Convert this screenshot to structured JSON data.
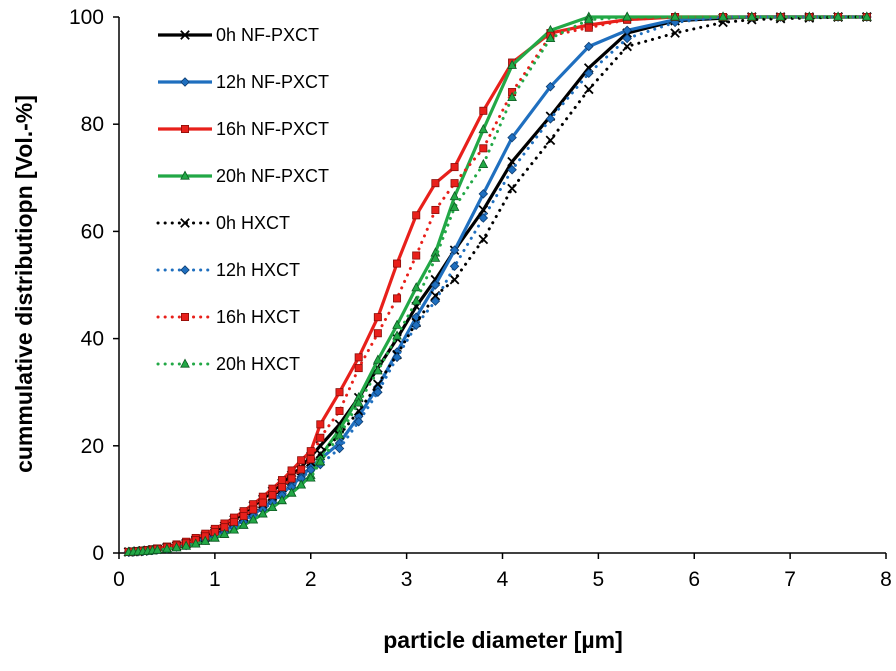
{
  "chart_data": {
    "type": "line",
    "xlabel": "particle diameter [µm]",
    "ylabel": "cummulative distributiopn [Vol.-%]",
    "xlim": [
      0,
      8
    ],
    "ylim": [
      0,
      100
    ],
    "x_ticks": [
      "0",
      "1",
      "2",
      "3",
      "4",
      "5",
      "6",
      "7",
      "8"
    ],
    "y_ticks": [
      "0",
      "20",
      "40",
      "60",
      "80",
      "100"
    ],
    "grid": false,
    "legend_position": "top-left",
    "series": [
      {
        "name": "0h NF-PXCT",
        "color": "#000000",
        "style": "solid",
        "marker": "x",
        "x": [
          0.1,
          0.15,
          0.2,
          0.25,
          0.3,
          0.35,
          0.4,
          0.5,
          0.6,
          0.7,
          0.8,
          0.9,
          1.0,
          1.1,
          1.2,
          1.3,
          1.4,
          1.5,
          1.6,
          1.7,
          1.8,
          1.9,
          2.0,
          2.1,
          2.3,
          2.5,
          2.7,
          2.9,
          3.1,
          3.3,
          3.5,
          3.8,
          4.1,
          4.5,
          4.9,
          5.3,
          5.8,
          6.3,
          6.6,
          6.9,
          7.2,
          7.5,
          7.8
        ],
        "y": [
          0.2,
          0.25,
          0.3,
          0.4,
          0.5,
          0.6,
          0.7,
          1.0,
          1.3,
          1.8,
          2.4,
          3.2,
          4.1,
          5.0,
          6.2,
          7.4,
          8.8,
          10.0,
          11.5,
          13.0,
          14.5,
          16.0,
          18.0,
          20.0,
          24.0,
          29.0,
          34.5,
          40.0,
          46.0,
          51.0,
          56.5,
          64.0,
          73.0,
          81.5,
          90.5,
          97.0,
          99.3,
          99.8,
          100,
          100,
          100,
          100,
          100
        ]
      },
      {
        "name": "12h NF-PXCT",
        "color": "#1f6fbf",
        "style": "solid",
        "marker": "diamond",
        "x": [
          0.1,
          0.15,
          0.2,
          0.25,
          0.3,
          0.35,
          0.4,
          0.5,
          0.6,
          0.7,
          0.8,
          0.9,
          1.0,
          1.1,
          1.2,
          1.3,
          1.4,
          1.5,
          1.6,
          1.7,
          1.8,
          1.9,
          2.0,
          2.1,
          2.3,
          2.5,
          2.7,
          2.9,
          3.1,
          3.3,
          3.5,
          3.8,
          4.1,
          4.5,
          4.9,
          5.3,
          5.8,
          6.3,
          6.6,
          6.9,
          7.2,
          7.5,
          7.8
        ],
        "y": [
          0.2,
          0.25,
          0.3,
          0.35,
          0.45,
          0.55,
          0.65,
          0.9,
          1.2,
          1.6,
          2.1,
          2.7,
          3.4,
          4.2,
          5.1,
          6.1,
          7.2,
          8.4,
          9.7,
          11.1,
          12.6,
          14.2,
          16.0,
          17.5,
          20.5,
          25.5,
          31.0,
          37.5,
          44.0,
          50.0,
          56.5,
          67.0,
          77.5,
          87.0,
          94.5,
          97.5,
          99.5,
          100,
          100,
          100,
          100,
          100,
          100
        ]
      },
      {
        "name": "16h NF-PXCT",
        "color": "#e8201b",
        "style": "solid",
        "marker": "square",
        "x": [
          0.1,
          0.15,
          0.2,
          0.25,
          0.3,
          0.35,
          0.4,
          0.5,
          0.6,
          0.7,
          0.8,
          0.9,
          1.0,
          1.1,
          1.2,
          1.3,
          1.4,
          1.5,
          1.6,
          1.7,
          1.8,
          1.9,
          2.0,
          2.1,
          2.3,
          2.5,
          2.7,
          2.9,
          3.1,
          3.3,
          3.5,
          3.8,
          4.1,
          4.5,
          4.9,
          5.3,
          5.8,
          6.3,
          6.6,
          6.9,
          7.2,
          7.5,
          7.8
        ],
        "y": [
          0.2,
          0.25,
          0.35,
          0.45,
          0.55,
          0.7,
          0.85,
          1.2,
          1.6,
          2.1,
          2.8,
          3.6,
          4.5,
          5.5,
          6.6,
          7.8,
          9.1,
          10.5,
          12.0,
          13.6,
          15.4,
          17.3,
          19.0,
          24.0,
          30.0,
          36.5,
          44.0,
          54.0,
          63.0,
          69.0,
          72.0,
          82.5,
          91.5,
          97.0,
          98.5,
          99.5,
          100,
          100,
          100,
          100,
          100,
          100,
          100
        ]
      },
      {
        "name": "20h NF-PXCT",
        "color": "#22a846",
        "style": "solid",
        "marker": "triangle",
        "x": [
          0.1,
          0.15,
          0.2,
          0.25,
          0.3,
          0.35,
          0.4,
          0.5,
          0.6,
          0.7,
          0.8,
          0.9,
          1.0,
          1.1,
          1.2,
          1.3,
          1.4,
          1.5,
          1.6,
          1.7,
          1.8,
          1.9,
          2.0,
          2.1,
          2.3,
          2.5,
          2.7,
          2.9,
          3.1,
          3.3,
          3.5,
          3.8,
          4.1,
          4.5,
          4.9,
          5.3,
          5.8,
          6.3,
          6.6,
          6.9,
          7.2,
          7.5,
          7.8
        ],
        "y": [
          0.15,
          0.2,
          0.25,
          0.3,
          0.35,
          0.45,
          0.55,
          0.75,
          1.0,
          1.3,
          1.7,
          2.2,
          2.8,
          3.5,
          4.3,
          5.2,
          6.2,
          7.3,
          8.5,
          9.8,
          11.2,
          12.7,
          14.5,
          18.0,
          23.0,
          29.0,
          36.0,
          42.5,
          49.5,
          56.0,
          66.5,
          79.0,
          91.0,
          97.5,
          100,
          100,
          100,
          100,
          100,
          100,
          100,
          100,
          100
        ]
      },
      {
        "name": "0h HXCT",
        "color": "#000000",
        "style": "dotted",
        "marker": "x",
        "x": [
          0.1,
          0.15,
          0.2,
          0.25,
          0.3,
          0.35,
          0.4,
          0.5,
          0.6,
          0.7,
          0.8,
          0.9,
          1.0,
          1.1,
          1.2,
          1.3,
          1.4,
          1.5,
          1.6,
          1.7,
          1.8,
          1.9,
          2.0,
          2.1,
          2.3,
          2.5,
          2.7,
          2.9,
          3.1,
          3.3,
          3.5,
          3.8,
          4.1,
          4.5,
          4.9,
          5.3,
          5.8,
          6.3,
          6.6,
          6.9,
          7.2,
          7.5,
          7.8
        ],
        "y": [
          0.2,
          0.25,
          0.3,
          0.4,
          0.5,
          0.6,
          0.7,
          1.0,
          1.3,
          1.7,
          2.2,
          2.9,
          3.7,
          4.6,
          5.6,
          6.7,
          7.9,
          9.2,
          10.6,
          12.1,
          13.7,
          15.4,
          17.0,
          18.5,
          22.0,
          26.5,
          31.5,
          37.0,
          43.0,
          48.0,
          51.0,
          58.5,
          68.0,
          77.0,
          86.5,
          94.5,
          97.0,
          99.0,
          99.5,
          99.7,
          99.8,
          100,
          100
        ]
      },
      {
        "name": "12h HXCT",
        "color": "#1f6fbf",
        "style": "dotted",
        "marker": "diamond",
        "x": [
          0.1,
          0.15,
          0.2,
          0.25,
          0.3,
          0.35,
          0.4,
          0.5,
          0.6,
          0.7,
          0.8,
          0.9,
          1.0,
          1.1,
          1.2,
          1.3,
          1.4,
          1.5,
          1.6,
          1.7,
          1.8,
          1.9,
          2.0,
          2.1,
          2.3,
          2.5,
          2.7,
          2.9,
          3.1,
          3.3,
          3.5,
          3.8,
          4.1,
          4.5,
          4.9,
          5.3,
          5.8,
          6.3,
          6.6,
          6.9,
          7.2,
          7.5,
          7.8
        ],
        "y": [
          0.15,
          0.2,
          0.25,
          0.3,
          0.4,
          0.5,
          0.6,
          0.8,
          1.1,
          1.4,
          1.9,
          2.4,
          3.1,
          3.9,
          4.8,
          5.8,
          6.9,
          8.1,
          9.4,
          10.8,
          12.3,
          13.9,
          15.5,
          16.5,
          19.5,
          24.5,
          30.0,
          36.5,
          42.5,
          47.0,
          53.5,
          62.5,
          71.5,
          81.0,
          89.5,
          96.0,
          99.0,
          100,
          100,
          100,
          100,
          100,
          100
        ]
      },
      {
        "name": "16h HXCT",
        "color": "#e8201b",
        "style": "dotted",
        "marker": "square",
        "x": [
          0.1,
          0.15,
          0.2,
          0.25,
          0.3,
          0.35,
          0.4,
          0.5,
          0.6,
          0.7,
          0.8,
          0.9,
          1.0,
          1.1,
          1.2,
          1.3,
          1.4,
          1.5,
          1.6,
          1.7,
          1.8,
          1.9,
          2.0,
          2.1,
          2.3,
          2.5,
          2.7,
          2.9,
          3.1,
          3.3,
          3.5,
          3.8,
          4.1,
          4.5,
          4.9,
          5.3,
          5.8,
          6.3,
          6.6,
          6.9,
          7.2,
          7.5,
          7.8
        ],
        "y": [
          0.2,
          0.25,
          0.3,
          0.4,
          0.5,
          0.6,
          0.75,
          1.05,
          1.4,
          1.8,
          2.4,
          3.1,
          3.9,
          4.8,
          5.8,
          6.9,
          8.1,
          9.4,
          10.8,
          12.3,
          13.9,
          15.6,
          17.5,
          21.5,
          26.5,
          34.5,
          41.0,
          47.5,
          55.5,
          64.0,
          69.0,
          75.5,
          86.0,
          96.5,
          98.0,
          99.5,
          100,
          100,
          100,
          100,
          100,
          100,
          100
        ]
      },
      {
        "name": "20h HXCT",
        "color": "#22a846",
        "style": "dotted",
        "marker": "triangle",
        "x": [
          0.1,
          0.15,
          0.2,
          0.25,
          0.3,
          0.35,
          0.4,
          0.5,
          0.6,
          0.7,
          0.8,
          0.9,
          1.0,
          1.1,
          1.2,
          1.3,
          1.4,
          1.5,
          1.6,
          1.7,
          1.8,
          1.9,
          2.0,
          2.1,
          2.3,
          2.5,
          2.7,
          2.9,
          3.1,
          3.3,
          3.5,
          3.8,
          4.1,
          4.5,
          4.9,
          5.3,
          5.8,
          6.3,
          6.6,
          6.9,
          7.2,
          7.5,
          7.8
        ],
        "y": [
          0.15,
          0.2,
          0.25,
          0.3,
          0.35,
          0.45,
          0.55,
          0.75,
          1.0,
          1.3,
          1.7,
          2.2,
          2.8,
          3.5,
          4.3,
          5.2,
          6.2,
          7.3,
          8.5,
          9.8,
          11.2,
          12.7,
          14.0,
          17.0,
          22.0,
          28.0,
          34.0,
          40.5,
          47.0,
          55.0,
          64.5,
          72.5,
          85.0,
          96.0,
          99.5,
          100,
          100,
          100,
          100,
          100,
          100,
          100,
          100
        ]
      }
    ]
  }
}
